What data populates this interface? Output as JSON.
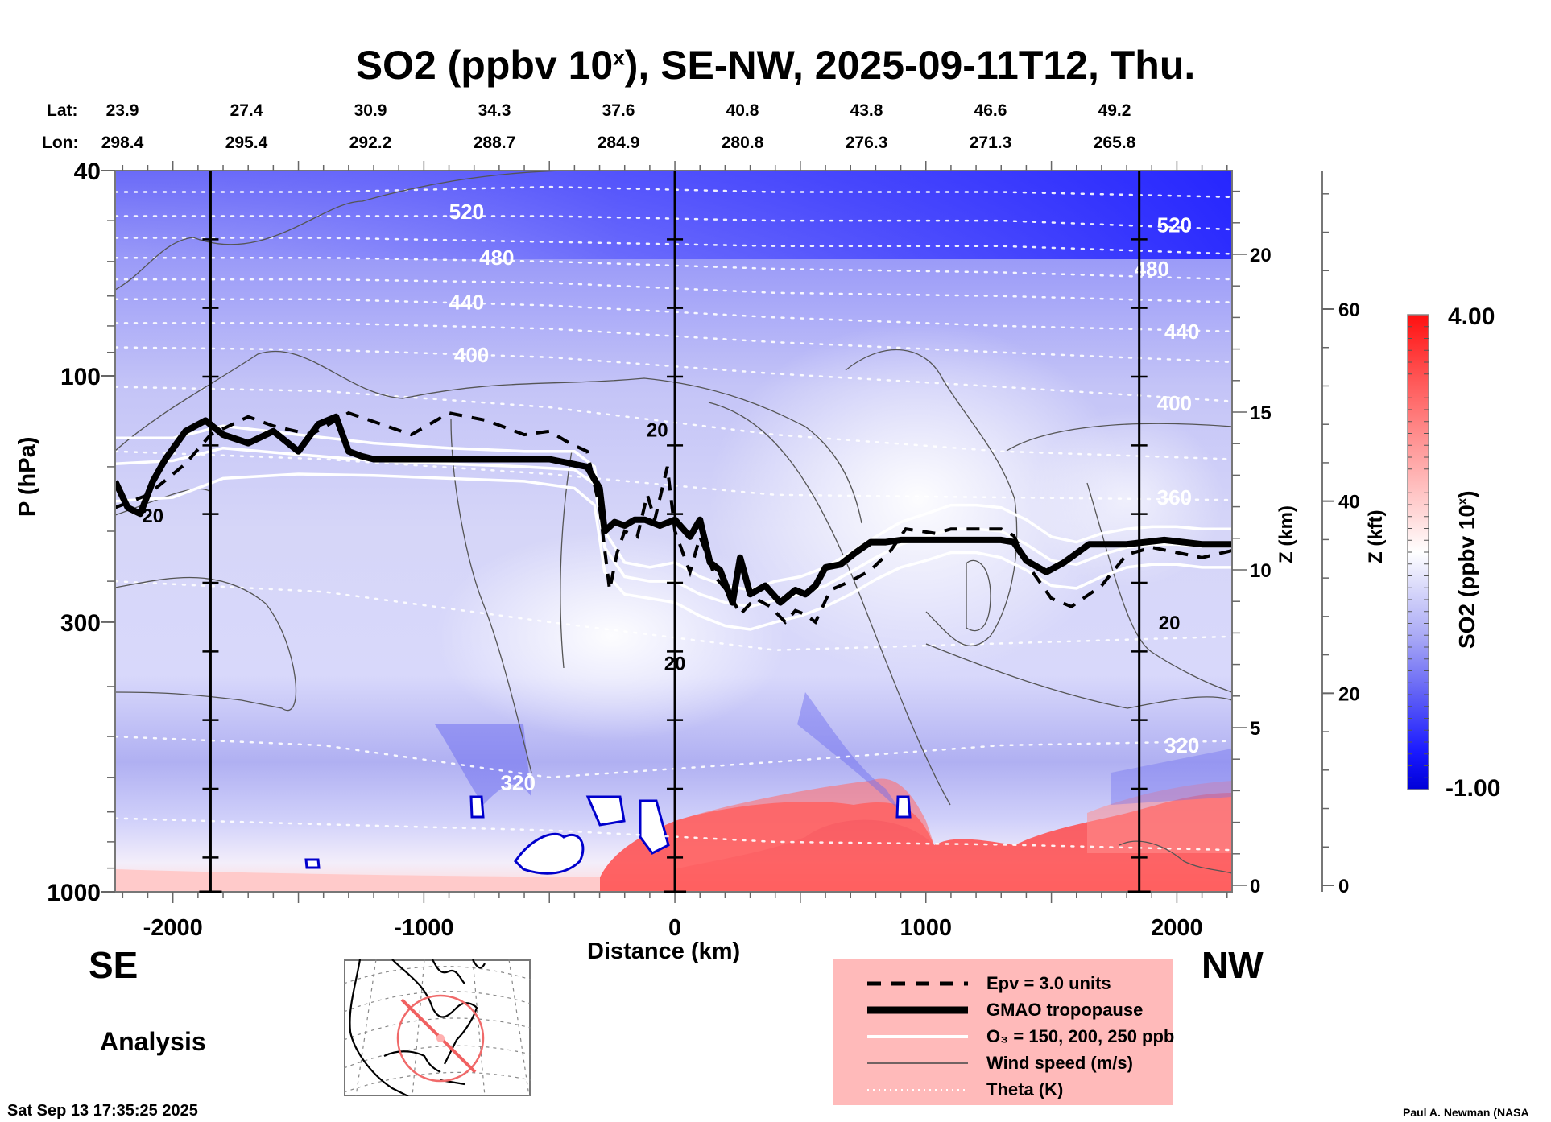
{
  "title": {
    "main": "SO2 (ppbv 10",
    "sup": "x",
    "rest": "), SE-NW, 2025-09-11T12, Thu."
  },
  "location": {
    "lat_label": "Lat:",
    "lon_label": "Lon:",
    "lat": [
      "23.9",
      "27.4",
      "30.9",
      "34.3",
      "37.6",
      "40.8",
      "43.8",
      "46.6",
      "49.2"
    ],
    "lon": [
      "298.4",
      "295.4",
      "292.2",
      "288.7",
      "284.9",
      "280.8",
      "276.3",
      "271.3",
      "265.8"
    ]
  },
  "labels": {
    "se": "SE",
    "nw": "NW",
    "analysis": "Analysis",
    "timestamp": "Sat Sep 13 17:35:25 2025",
    "credit": "Paul A. Newman (NASA"
  },
  "legend": {
    "items": [
      {
        "type": "epv",
        "text": "Epv = 3.0 units"
      },
      {
        "type": "tropopause",
        "text": "GMAO tropopause"
      },
      {
        "type": "ozone",
        "text": "O₃ = 150, 200, 250 ppb"
      },
      {
        "type": "wind",
        "text": "Wind speed (m/s)"
      },
      {
        "type": "theta",
        "text": "Theta (K)"
      }
    ]
  },
  "colorbar": {
    "max_label": "4.00",
    "min_label": "-1.00",
    "label_main": "SO2 (ppbv 10",
    "label_sup": "x",
    "label_end": ")",
    "min": -1.0,
    "max": 4.0,
    "low_color": "#0000e0",
    "mid_color": "#ffffff",
    "high_color": "#ff1010"
  },
  "chart_data": {
    "type": "heatmap",
    "title": "SO2 (ppbv 10^x), SE-NW, 2025-09-11T12, Thu.",
    "xlabel": "Distance (km)",
    "ylabel": "P (hPa)",
    "y2label": "Z (km)",
    "y3label": "Z (kft)",
    "xlim": [
      -2230,
      2220
    ],
    "ylim": [
      1000,
      40
    ],
    "yscale": "log",
    "x_ticks": [
      -2000,
      -1000,
      0,
      1000,
      2000
    ],
    "x_tick_labels": [
      "-2000",
      "-1000",
      "0",
      "1000",
      "2000"
    ],
    "y_ticks": [
      40,
      100,
      300,
      1000
    ],
    "y_tick_labels": [
      "40",
      "100",
      "300",
      "1000"
    ],
    "z_km_ticks": [
      0,
      5,
      10,
      15,
      20
    ],
    "z_km_tick_labels": [
      "0",
      "5",
      "10",
      "15",
      "20"
    ],
    "z_kft_ticks": [
      0,
      20,
      40,
      60
    ],
    "z_kft_tick_labels": [
      "0",
      "20",
      "40",
      "60"
    ],
    "vertical_markers_km": [
      -1850,
      0,
      1850
    ],
    "theta_labels": [
      {
        "value": "520",
        "x": -830,
        "p": 48
      },
      {
        "value": "480",
        "x": -710,
        "p": 59
      },
      {
        "value": "440",
        "x": -830,
        "p": 72
      },
      {
        "value": "400",
        "x": -810,
        "p": 91
      },
      {
        "value": "320",
        "x": -625,
        "p": 615
      },
      {
        "value": "520",
        "x": 1990,
        "p": 51
      },
      {
        "value": "480",
        "x": 1900,
        "p": 62
      },
      {
        "value": "440",
        "x": 2020,
        "p": 82
      },
      {
        "value": "400",
        "x": 1990,
        "p": 113
      },
      {
        "value": "360",
        "x": 1990,
        "p": 172
      },
      {
        "value": "320",
        "x": 2020,
        "p": 520
      }
    ],
    "wind_labels": [
      {
        "value": "20",
        "x": -2080,
        "p": 186
      },
      {
        "value": "20",
        "x": -70,
        "p": 127
      },
      {
        "value": "20",
        "x": 0,
        "p": 360
      },
      {
        "value": "20",
        "x": 1970,
        "p": 300
      }
    ],
    "tropopause": {
      "x": [
        -2230,
        -2180,
        -2130,
        -2080,
        -2030,
        -1950,
        -1870,
        -1800,
        -1700,
        -1600,
        -1500,
        -1420,
        -1350,
        -1300,
        -1250,
        -1200,
        -1100,
        -900,
        -700,
        -500,
        -350,
        -300,
        -280,
        -240,
        -200,
        -160,
        -120,
        -60,
        0,
        60,
        100,
        140,
        180,
        230,
        260,
        300,
        360,
        420,
        480,
        520,
        560,
        600,
        660,
        720,
        780,
        840,
        900,
        960,
        1020,
        1100,
        1300,
        1350,
        1400,
        1480,
        1550,
        1650,
        1800,
        1950,
        2100,
        2220
      ],
      "p": [
        160,
        180,
        185,
        160,
        145,
        128,
        122,
        130,
        135,
        128,
        140,
        124,
        120,
        140,
        143,
        145,
        145,
        145,
        145,
        145,
        150,
        165,
        200,
        192,
        195,
        190,
        190,
        195,
        190,
        205,
        190,
        230,
        238,
        275,
        225,
        265,
        255,
        275,
        260,
        265,
        255,
        235,
        232,
        220,
        210,
        210,
        208,
        208,
        208,
        208,
        208,
        210,
        228,
        240,
        230,
        212,
        212,
        208,
        212,
        212
      ]
    },
    "epv_line": {
      "x": [
        -2230,
        -2100,
        -1950,
        -1850,
        -1700,
        -1600,
        -1450,
        -1300,
        -1150,
        -1050,
        -900,
        -750,
        -600,
        -500,
        -420,
        -350,
        -300,
        -260,
        -230,
        -200,
        -150,
        -110,
        -80,
        -30,
        0,
        60,
        100,
        160,
        220,
        260,
        320,
        380,
        440,
        480,
        520,
        560,
        620,
        700,
        780,
        860,
        920,
        980,
        1040,
        1100,
        1200,
        1300,
        1350,
        1420,
        1500,
        1580,
        1700,
        1800,
        1900,
        2000,
        2100,
        2220
      ],
      "p": [
        180,
        170,
        148,
        130,
        120,
        125,
        130,
        118,
        125,
        130,
        118,
        122,
        130,
        128,
        135,
        140,
        180,
        260,
        220,
        200,
        205,
        170,
        190,
        150,
        200,
        240,
        205,
        245,
        265,
        290,
        270,
        280,
        300,
        285,
        290,
        300,
        260,
        250,
        238,
        218,
        198,
        200,
        202,
        198,
        198,
        198,
        204,
        238,
        270,
        280,
        255,
        222,
        215,
        220,
        225,
        218
      ]
    },
    "ozone_lines": [
      {
        "value": 150,
        "x": [
          -2230,
          -2000,
          -1800,
          -1500,
          -1200,
          -900,
          -600,
          -400,
          -320,
          -280,
          -200,
          -100,
          0,
          100,
          200,
          300,
          400,
          500,
          600,
          700,
          800,
          900,
          1000,
          1100,
          1200,
          1300,
          1400,
          1500,
          1600,
          1700,
          1800,
          1900,
          2000,
          2100,
          2220
        ],
        "p": [
          132,
          132,
          125,
          130,
          135,
          138,
          140,
          140,
          150,
          200,
          230,
          235,
          230,
          245,
          255,
          260,
          250,
          245,
          235,
          220,
          205,
          192,
          185,
          178,
          178,
          180,
          190,
          205,
          210,
          202,
          198,
          196,
          196,
          198,
          198
        ]
      },
      {
        "value": 200,
        "x": [
          -2230,
          -2000,
          -1800,
          -1500,
          -1200,
          -900,
          -600,
          -400,
          -320,
          -280,
          -200,
          -100,
          0,
          100,
          200,
          300,
          400,
          500,
          600,
          700,
          800,
          900,
          1000,
          1100,
          1200,
          1300,
          1400,
          1500,
          1600,
          1700,
          1800,
          1900,
          2000,
          2100,
          2220
        ],
        "p": [
          148,
          146,
          138,
          142,
          146,
          148,
          150,
          152,
          162,
          215,
          245,
          250,
          250,
          265,
          275,
          280,
          272,
          265,
          255,
          240,
          225,
          212,
          205,
          198,
          198,
          200,
          212,
          228,
          232,
          222,
          215,
          212,
          212,
          214,
          214
        ]
      },
      {
        "value": 250,
        "x": [
          -2230,
          -2000,
          -1800,
          -1500,
          -1200,
          -900,
          -600,
          -400,
          -320,
          -280,
          -200,
          -100,
          0,
          100,
          200,
          300,
          400,
          500,
          600,
          700,
          800,
          900,
          1000,
          1100,
          1200,
          1300,
          1400,
          1500,
          1600,
          1700,
          1800,
          1900,
          2000,
          2100,
          2220
        ],
        "p": [
          175,
          172,
          158,
          155,
          156,
          158,
          160,
          165,
          178,
          240,
          265,
          270,
          275,
          292,
          305,
          310,
          300,
          292,
          280,
          265,
          248,
          235,
          228,
          220,
          220,
          225,
          238,
          255,
          258,
          245,
          235,
          232,
          232,
          235,
          235
        ]
      }
    ],
    "theta_levels": [
      {
        "value": 540,
        "p": [
          44,
          44,
          43,
          44,
          44,
          45
        ]
      },
      {
        "value": 520,
        "p": [
          49,
          49,
          49,
          50,
          50,
          52
        ]
      },
      {
        "value": 500,
        "p": [
          54,
          54,
          55,
          56,
          56,
          58
        ]
      },
      {
        "value": 480,
        "p": [
          59,
          59,
          60,
          62,
          63,
          65
        ]
      },
      {
        "value": 460,
        "p": [
          65,
          65,
          66,
          69,
          70,
          72
        ]
      },
      {
        "value": 440,
        "p": [
          71,
          71,
          73,
          77,
          80,
          82
        ]
      },
      {
        "value": 420,
        "p": [
          79,
          79,
          81,
          86,
          90,
          94
        ]
      },
      {
        "value": 400,
        "p": [
          88,
          89,
          92,
          99,
          105,
          112
        ]
      },
      {
        "value": 380,
        "p": [
          105,
          107,
          115,
          130,
          140,
          145
        ]
      },
      {
        "value": 360,
        "p": [
          140,
          145,
          155,
          170,
          172,
          174
        ]
      },
      {
        "value": 340,
        "p": [
          250,
          262,
          300,
          340,
          330,
          320
        ]
      },
      {
        "value": 320,
        "p": [
          500,
          520,
          600,
          560,
          520,
          510
        ]
      },
      {
        "value": 310,
        "p": [
          720,
          740,
          760,
          800,
          810,
          830
        ]
      }
    ],
    "theta_x": [
      -2230,
      -1400,
      -500,
      400,
      1300,
      2220
    ],
    "so2_field_summary": {
      "stratosphere_top": -0.6,
      "upper_troposphere": -0.2,
      "boundary_layer_east_of_0km": 3.5,
      "boundary_layer_west": 0.8,
      "boundary_layer_far_nw": 2.5
    }
  }
}
